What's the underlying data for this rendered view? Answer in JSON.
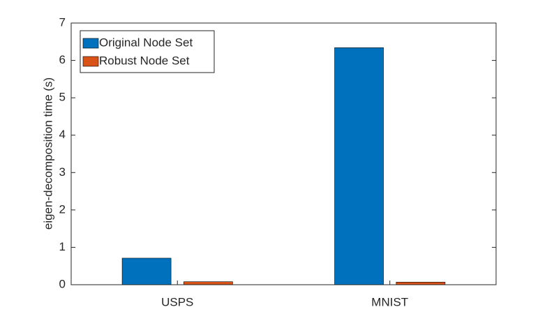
{
  "chart_data": {
    "type": "bar",
    "categories": [
      "USPS",
      "MNIST"
    ],
    "y_label": "eigen-decomposition time (s)",
    "series": [
      {
        "name": "Original Node Set",
        "color": "#0072bd",
        "values": [
          0.71,
          6.34
        ]
      },
      {
        "name": "Robust Node Set",
        "color": "#d95319",
        "values": [
          0.08,
          0.07
        ]
      }
    ],
    "ylim": [
      0,
      7
    ],
    "yticks": [
      0,
      1,
      2,
      3,
      4,
      5,
      6,
      7
    ],
    "legend": "upper-left"
  }
}
